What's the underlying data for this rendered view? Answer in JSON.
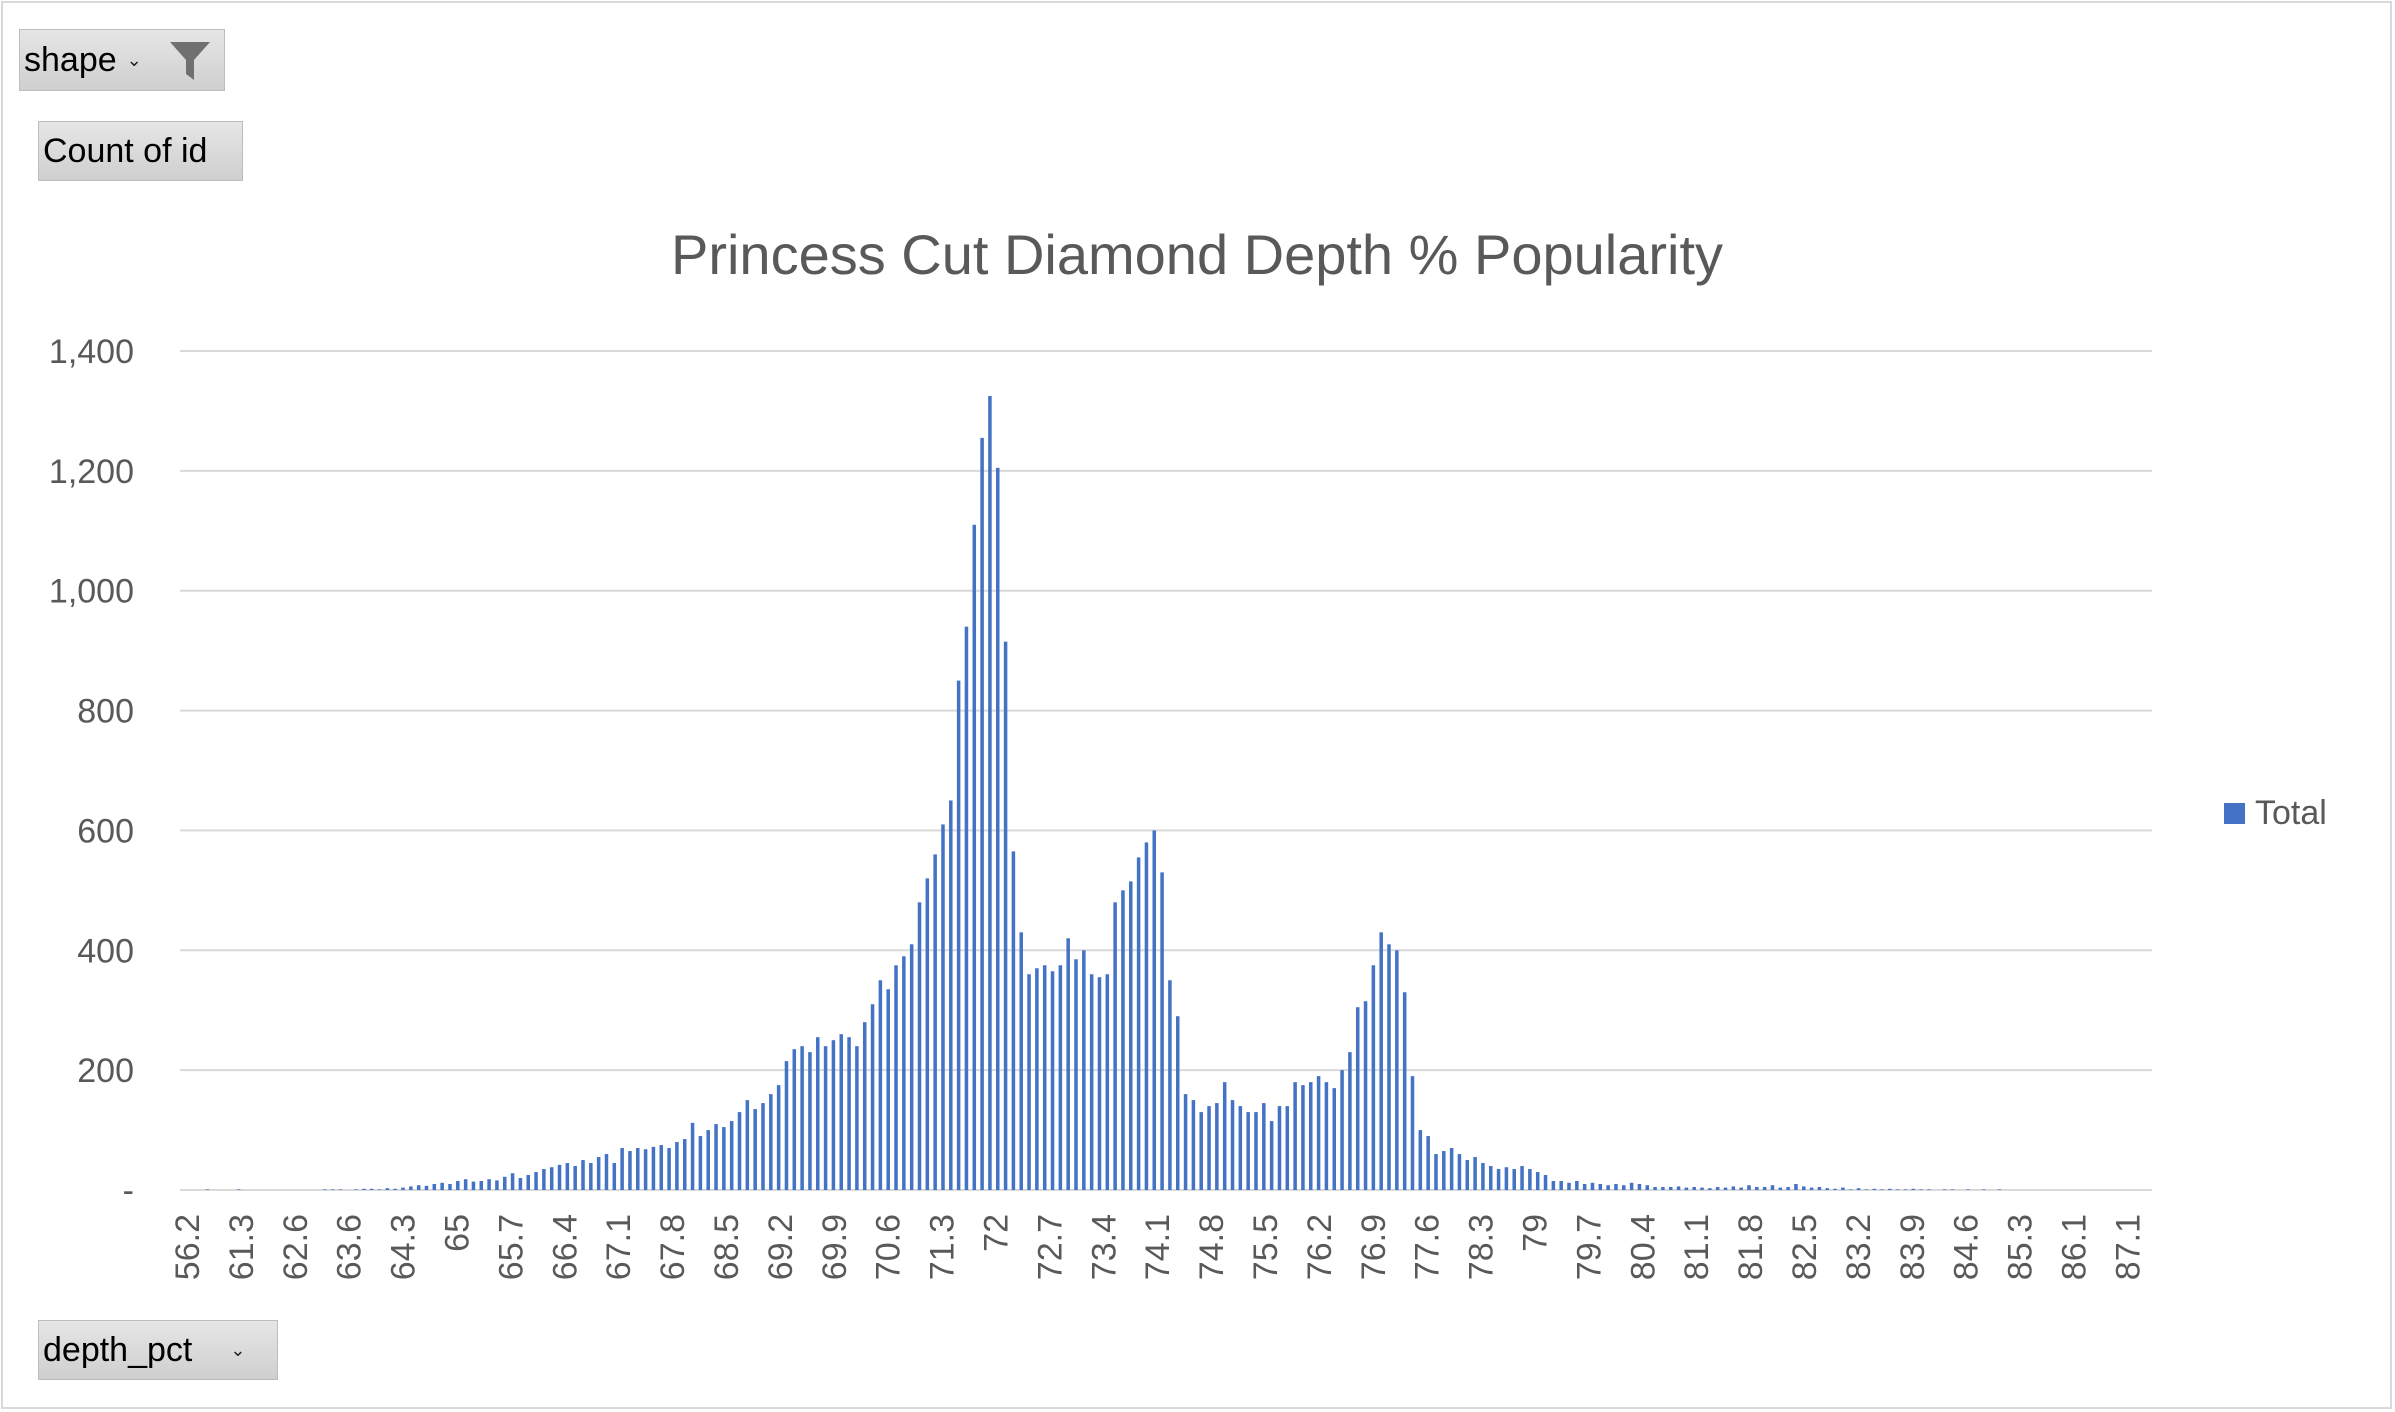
{
  "pivot_fields": {
    "filter_label": "shape",
    "values_label": "Count of id",
    "axis_label": "depth_pct",
    "dropdown_icon": "chevron-down-icon",
    "filter_icon": "funnel-filter-icon"
  },
  "colors": {
    "bar": "#4472c4",
    "grid": "#d9d9d9",
    "text": "#595959"
  },
  "chart_data": {
    "type": "bar",
    "title": "Princess Cut Diamond Depth % Popularity",
    "xlabel": "",
    "ylabel": "",
    "ylim": [
      0,
      1400
    ],
    "yticks": [
      "-",
      "200",
      "400",
      "600",
      "800",
      "1,000",
      "1,200",
      "1,400"
    ],
    "ytick_values": [
      0,
      200,
      400,
      600,
      800,
      1000,
      1200,
      1400
    ],
    "legend": {
      "entries": [
        "Total"
      ],
      "position": "right"
    },
    "grid": true,
    "tick_labels": [
      "56.2",
      "61.3",
      "62.6",
      "63.6",
      "64.3",
      "65",
      "65.7",
      "66.4",
      "67.1",
      "67.8",
      "68.5",
      "69.2",
      "69.9",
      "70.6",
      "71.3",
      "72",
      "72.7",
      "73.4",
      "74.1",
      "74.8",
      "75.5",
      "76.2",
      "76.9",
      "77.6",
      "78.3",
      "79",
      "79.7",
      "80.4",
      "81.1",
      "81.8",
      "82.5",
      "83.2",
      "83.9",
      "84.6",
      "85.3",
      "86.1",
      "87.1"
    ],
    "series": [
      {
        "name": "Total",
        "values": [
          0,
          0,
          0,
          1,
          0,
          0,
          0,
          1,
          0,
          0,
          0,
          0,
          0,
          0,
          0,
          0,
          0,
          0,
          1,
          1,
          1,
          0,
          1,
          2,
          2,
          1,
          3,
          2,
          4,
          6,
          8,
          7,
          10,
          12,
          10,
          15,
          18,
          14,
          15,
          18,
          16,
          22,
          28,
          20,
          25,
          30,
          35,
          38,
          42,
          45,
          40,
          50,
          45,
          55,
          60,
          45,
          70,
          65,
          70,
          68,
          72,
          75,
          70,
          80,
          85,
          112,
          90,
          100,
          110,
          105,
          115,
          130,
          150,
          135,
          145,
          160,
          175,
          215,
          235,
          240,
          230,
          255,
          240,
          250,
          260,
          255,
          240,
          280,
          310,
          350,
          335,
          375,
          390,
          410,
          480,
          520,
          560,
          610,
          650,
          850,
          940,
          1110,
          1255,
          1325,
          1205,
          915,
          565,
          430,
          360,
          370,
          375,
          365,
          375,
          420,
          385,
          400,
          360,
          355,
          360,
          480,
          500,
          515,
          555,
          580,
          600,
          530,
          350,
          290,
          160,
          150,
          130,
          140,
          145,
          180,
          150,
          140,
          130,
          130,
          145,
          115,
          140,
          140,
          180,
          175,
          180,
          190,
          180,
          170,
          200,
          230,
          305,
          315,
          375,
          430,
          410,
          400,
          330,
          190,
          100,
          90,
          60,
          65,
          70,
          60,
          50,
          55,
          45,
          40,
          35,
          38,
          35,
          40,
          35,
          30,
          25,
          15,
          15,
          12,
          15,
          10,
          12,
          10,
          8,
          10,
          8,
          12,
          10,
          8,
          5,
          5,
          5,
          6,
          4,
          5,
          4,
          3,
          5,
          4,
          6,
          4,
          8,
          5,
          5,
          8,
          4,
          5,
          10,
          6,
          4,
          5,
          3,
          2,
          4,
          1,
          3,
          1,
          2,
          1,
          2,
          1,
          1,
          2,
          1,
          1,
          0,
          1,
          1,
          0,
          1,
          0,
          1,
          0,
          1,
          0,
          0,
          0,
          0,
          0,
          0,
          0,
          0,
          0,
          0,
          0,
          0,
          0,
          0,
          0,
          0,
          0,
          0,
          0
        ]
      }
    ]
  }
}
